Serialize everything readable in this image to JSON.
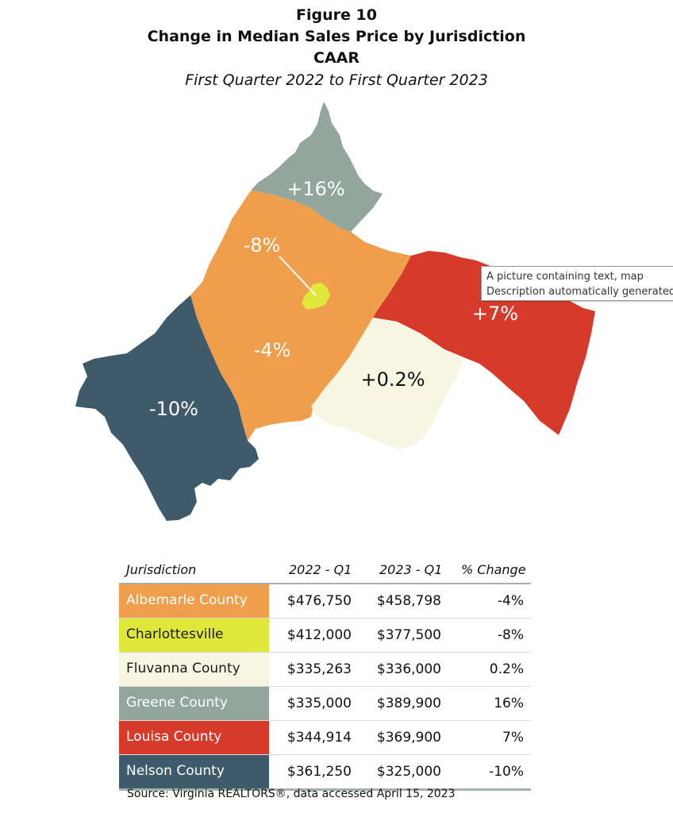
{
  "header": {
    "figure": "Figure 10",
    "title": "Change in Median Sales Price by Jurisdiction",
    "org": "CAAR",
    "period": "First Quarter 2022 to First Quarter 2023"
  },
  "map": {
    "labels": {
      "greene": "+16%",
      "charlottesville": "-8%",
      "albemarle": "-4%",
      "louisa": "+7%",
      "fluvanna": "+0.2%",
      "nelson": "-10%"
    },
    "colors": {
      "albemarle": "#ef9f4c",
      "charlottesville": "#dfe83a",
      "fluvanna": "#f6f6e3",
      "greene": "#93a69b",
      "louisa": "#d63a2a",
      "nelson": "#3f5b6b"
    }
  },
  "tooltip": {
    "line1": "A picture containing text, map",
    "line2": "Description automatically generated"
  },
  "table": {
    "headers": [
      "Jurisdiction",
      "2022 - Q1",
      "2023 - Q1",
      "% Change"
    ],
    "rows": [
      {
        "name": "Albemarle County",
        "q1_2022": "$476,750",
        "q1_2023": "$458,798",
        "change": "-4%",
        "bg": "#ef9f4c",
        "fg": "#ffffff"
      },
      {
        "name": "Charlottesville",
        "q1_2022": "$412,000",
        "q1_2023": "$377,500",
        "change": "-8%",
        "bg": "#dfe83a",
        "fg": "#1a1a1a"
      },
      {
        "name": "Fluvanna County",
        "q1_2022": "$335,263",
        "q1_2023": "$336,000",
        "change": "0.2%",
        "bg": "#f6f6e3",
        "fg": "#1a1a1a"
      },
      {
        "name": "Greene County",
        "q1_2022": "$335,000",
        "q1_2023": "$389,900",
        "change": "16%",
        "bg": "#93a69b",
        "fg": "#ffffff"
      },
      {
        "name": "Louisa County",
        "q1_2022": "$344,914",
        "q1_2023": "$369,900",
        "change": "7%",
        "bg": "#d63a2a",
        "fg": "#ffffff"
      },
      {
        "name": "Nelson County",
        "q1_2022": "$361,250",
        "q1_2023": "$325,000",
        "change": "-10%",
        "bg": "#3f5b6b",
        "fg": "#ffffff"
      }
    ]
  },
  "source": "Source: Virginia REALTORS®, data accessed April 15, 2023"
}
